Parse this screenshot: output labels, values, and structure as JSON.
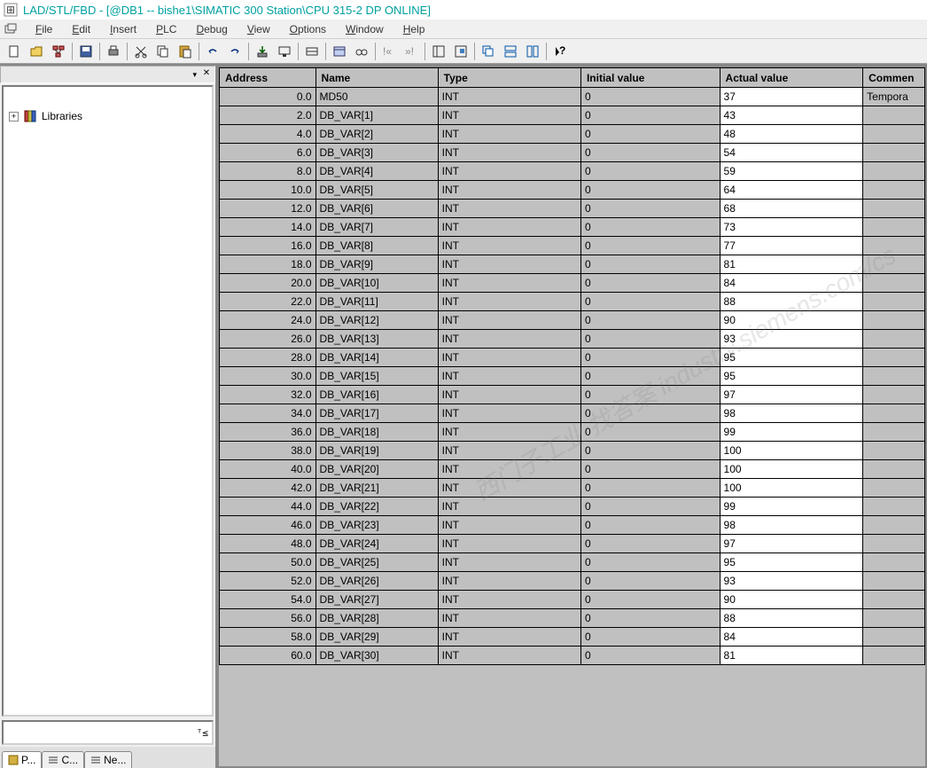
{
  "window": {
    "title": "LAD/STL/FBD  - [@DB1 -- bishe1\\SIMATIC 300 Station\\CPU 315-2 DP  ONLINE]"
  },
  "menu": {
    "file": "File",
    "edit": "Edit",
    "insert": "Insert",
    "plc": "PLC",
    "debug": "Debug",
    "view": "View",
    "options": "Options",
    "window": "Window",
    "help": "Help"
  },
  "tree": {
    "libraries": "Libraries"
  },
  "tabs": {
    "p": "P...",
    "c": "C...",
    "ne": "Ne..."
  },
  "table": {
    "headers": {
      "address": "Address",
      "name": "Name",
      "type": "Type",
      "initial": "Initial value",
      "actual": "Actual value",
      "comment": "Commen"
    },
    "rows": [
      {
        "addr": "0.0",
        "name": "MD50",
        "type": "INT",
        "init": "0",
        "actual": "37",
        "comment": "Tempora"
      },
      {
        "addr": "2.0",
        "name": "DB_VAR[1]",
        "type": "INT",
        "init": "0",
        "actual": "43",
        "comment": ""
      },
      {
        "addr": "4.0",
        "name": "DB_VAR[2]",
        "type": "INT",
        "init": "0",
        "actual": "48",
        "comment": ""
      },
      {
        "addr": "6.0",
        "name": "DB_VAR[3]",
        "type": "INT",
        "init": "0",
        "actual": "54",
        "comment": ""
      },
      {
        "addr": "8.0",
        "name": "DB_VAR[4]",
        "type": "INT",
        "init": "0",
        "actual": "59",
        "comment": ""
      },
      {
        "addr": "10.0",
        "name": "DB_VAR[5]",
        "type": "INT",
        "init": "0",
        "actual": "64",
        "comment": ""
      },
      {
        "addr": "12.0",
        "name": "DB_VAR[6]",
        "type": "INT",
        "init": "0",
        "actual": "68",
        "comment": ""
      },
      {
        "addr": "14.0",
        "name": "DB_VAR[7]",
        "type": "INT",
        "init": "0",
        "actual": "73",
        "comment": ""
      },
      {
        "addr": "16.0",
        "name": "DB_VAR[8]",
        "type": "INT",
        "init": "0",
        "actual": "77",
        "comment": ""
      },
      {
        "addr": "18.0",
        "name": "DB_VAR[9]",
        "type": "INT",
        "init": "0",
        "actual": "81",
        "comment": ""
      },
      {
        "addr": "20.0",
        "name": "DB_VAR[10]",
        "type": "INT",
        "init": "0",
        "actual": "84",
        "comment": ""
      },
      {
        "addr": "22.0",
        "name": "DB_VAR[11]",
        "type": "INT",
        "init": "0",
        "actual": "88",
        "comment": ""
      },
      {
        "addr": "24.0",
        "name": "DB_VAR[12]",
        "type": "INT",
        "init": "0",
        "actual": "90",
        "comment": ""
      },
      {
        "addr": "26.0",
        "name": "DB_VAR[13]",
        "type": "INT",
        "init": "0",
        "actual": "93",
        "comment": ""
      },
      {
        "addr": "28.0",
        "name": "DB_VAR[14]",
        "type": "INT",
        "init": "0",
        "actual": "95",
        "comment": ""
      },
      {
        "addr": "30.0",
        "name": "DB_VAR[15]",
        "type": "INT",
        "init": "0",
        "actual": "95",
        "comment": ""
      },
      {
        "addr": "32.0",
        "name": "DB_VAR[16]",
        "type": "INT",
        "init": "0",
        "actual": "97",
        "comment": ""
      },
      {
        "addr": "34.0",
        "name": "DB_VAR[17]",
        "type": "INT",
        "init": "0",
        "actual": "98",
        "comment": ""
      },
      {
        "addr": "36.0",
        "name": "DB_VAR[18]",
        "type": "INT",
        "init": "0",
        "actual": "99",
        "comment": ""
      },
      {
        "addr": "38.0",
        "name": "DB_VAR[19]",
        "type": "INT",
        "init": "0",
        "actual": "100",
        "comment": ""
      },
      {
        "addr": "40.0",
        "name": "DB_VAR[20]",
        "type": "INT",
        "init": "0",
        "actual": "100",
        "comment": ""
      },
      {
        "addr": "42.0",
        "name": "DB_VAR[21]",
        "type": "INT",
        "init": "0",
        "actual": "100",
        "comment": ""
      },
      {
        "addr": "44.0",
        "name": "DB_VAR[22]",
        "type": "INT",
        "init": "0",
        "actual": "99",
        "comment": ""
      },
      {
        "addr": "46.0",
        "name": "DB_VAR[23]",
        "type": "INT",
        "init": "0",
        "actual": "98",
        "comment": ""
      },
      {
        "addr": "48.0",
        "name": "DB_VAR[24]",
        "type": "INT",
        "init": "0",
        "actual": "97",
        "comment": ""
      },
      {
        "addr": "50.0",
        "name": "DB_VAR[25]",
        "type": "INT",
        "init": "0",
        "actual": "95",
        "comment": ""
      },
      {
        "addr": "52.0",
        "name": "DB_VAR[26]",
        "type": "INT",
        "init": "0",
        "actual": "93",
        "comment": ""
      },
      {
        "addr": "54.0",
        "name": "DB_VAR[27]",
        "type": "INT",
        "init": "0",
        "actual": "90",
        "comment": ""
      },
      {
        "addr": "56.0",
        "name": "DB_VAR[28]",
        "type": "INT",
        "init": "0",
        "actual": "88",
        "comment": ""
      },
      {
        "addr": "58.0",
        "name": "DB_VAR[29]",
        "type": "INT",
        "init": "0",
        "actual": "84",
        "comment": ""
      },
      {
        "addr": "60.0",
        "name": "DB_VAR[30]",
        "type": "INT",
        "init": "0",
        "actual": "81",
        "comment": ""
      }
    ]
  },
  "colors": {
    "titlebar_text": "#00a0a0",
    "header_bg": "#c0c0c0",
    "cell_gray": "#c0c0c0",
    "cell_white": "#ffffff",
    "border": "#000000"
  },
  "watermark": "西门子工业 找答案 industry.siemens.com/cs"
}
